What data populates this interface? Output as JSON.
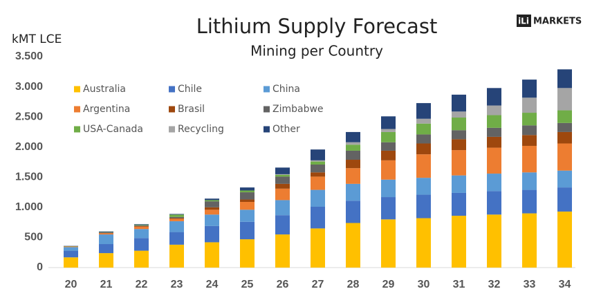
{
  "chart_data": {
    "type": "stacked_bar",
    "title": "Lithium Supply Forecast",
    "subtitle": "Mining per Country",
    "y_axis_label": "kMT LCE",
    "logo_mark": "iLi",
    "logo": "MARKETS",
    "categories": [
      "20",
      "21",
      "22",
      "23",
      "24",
      "25",
      "26",
      "27",
      "28",
      "29",
      "30",
      "31",
      "32",
      "33",
      "34"
    ],
    "ylim": [
      0,
      3500
    ],
    "yticks": [
      0,
      500,
      {
        "value": 1000,
        "label": "1.000"
      },
      {
        "value": 1500,
        "label": "1.500"
      },
      {
        "value": 2000,
        "label": "2.000"
      },
      {
        "value": 2500,
        "label": "2.500"
      },
      {
        "value": 3000,
        "label": "3.000"
      },
      {
        "value": 3500,
        "label": "3.500"
      }
    ],
    "grid": false,
    "series": [
      {
        "name": "Australia",
        "color": "#ffc000",
        "values": [
          170,
          240,
          280,
          380,
          420,
          470,
          550,
          650,
          740,
          800,
          820,
          860,
          880,
          900,
          930
        ]
      },
      {
        "name": "Chile",
        "color": "#4472c4",
        "values": [
          110,
          150,
          210,
          210,
          270,
          290,
          320,
          360,
          370,
          370,
          390,
          380,
          390,
          390,
          400
        ]
      },
      {
        "name": "China",
        "color": "#5b9bd5",
        "values": [
          60,
          160,
          150,
          180,
          190,
          200,
          250,
          280,
          280,
          290,
          280,
          290,
          290,
          290,
          280
        ]
      },
      {
        "name": "Argentina",
        "color": "#ed7d31",
        "values": [
          10,
          20,
          40,
          40,
          80,
          130,
          190,
          220,
          260,
          320,
          390,
          420,
          430,
          440,
          450
        ]
      },
      {
        "name": "Brasil",
        "color": "#9e480e",
        "values": [
          0,
          5,
          10,
          10,
          40,
          40,
          80,
          70,
          140,
          160,
          180,
          180,
          180,
          180,
          190
        ]
      },
      {
        "name": "Zimbabwe",
        "color": "#636363",
        "values": [
          0,
          10,
          10,
          20,
          100,
          120,
          120,
          130,
          150,
          140,
          150,
          150,
          150,
          160,
          150
        ]
      },
      {
        "name": "USA-Canada",
        "color": "#70ad47",
        "values": [
          5,
          5,
          10,
          40,
          20,
          30,
          30,
          50,
          100,
          170,
          180,
          210,
          210,
          210,
          210
        ]
      },
      {
        "name": "Recycling",
        "color": "#a5a5a5",
        "values": [
          0,
          0,
          0,
          0,
          0,
          0,
          10,
          20,
          40,
          50,
          80,
          100,
          160,
          250,
          370
        ]
      },
      {
        "name": "Other",
        "color": "#264478",
        "values": [
          5,
          10,
          10,
          10,
          25,
          50,
          110,
          180,
          170,
          210,
          260,
          280,
          290,
          300,
          310
        ]
      }
    ]
  }
}
